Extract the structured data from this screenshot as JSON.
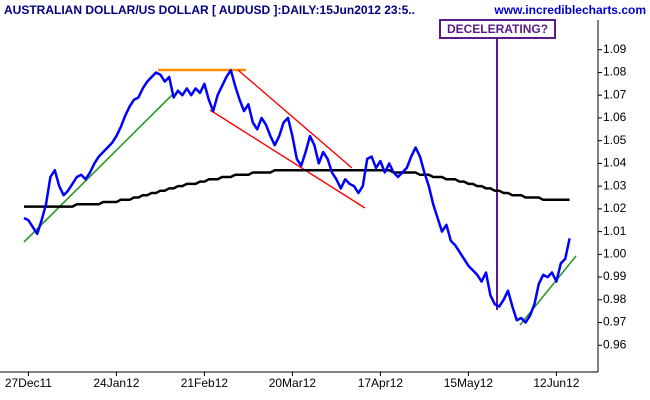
{
  "chart_data": {
    "type": "line",
    "title": "AUSTRALIAN DOLLAR/US DOLLAR [ AUDUSD ]:DAILY:15Jun2012 23:5..",
    "subtitle": "www.incrediblecharts.com",
    "annotation": "DECELERATING?",
    "categories": [
      null,
      "27Dec11",
      null,
      null,
      null,
      null,
      null,
      null,
      null,
      null,
      null,
      null,
      null,
      null,
      null,
      null,
      null,
      null,
      null,
      null,
      null,
      "24Jan12",
      null,
      null,
      null,
      null,
      null,
      null,
      null,
      null,
      null,
      null,
      null,
      null,
      null,
      null,
      null,
      null,
      null,
      null,
      null,
      "21Feb12",
      null,
      null,
      null,
      null,
      null,
      null,
      null,
      null,
      null,
      null,
      null,
      null,
      null,
      null,
      null,
      null,
      null,
      null,
      null,
      "20Mar12",
      null,
      null,
      null,
      null,
      null,
      null,
      null,
      null,
      null,
      null,
      null,
      null,
      null,
      null,
      null,
      null,
      null,
      null,
      null,
      "17Apr12",
      null,
      null,
      null,
      null,
      null,
      null,
      null,
      null,
      null,
      null,
      null,
      null,
      null,
      null,
      null,
      null,
      null,
      null,
      null,
      "15May12",
      null,
      null,
      null,
      null,
      null,
      null,
      null,
      null,
      null,
      null,
      null,
      null,
      null,
      null,
      null,
      null,
      null,
      null,
      null,
      "12Jun12",
      null,
      null,
      null
    ],
    "series": [
      {
        "color": "#0000ff",
        "values": [
          1.016,
          1.015,
          1.012,
          1.009,
          1.015,
          1.022,
          1.034,
          1.037,
          1.03,
          1.026,
          1.028,
          1.031,
          1.034,
          1.035,
          1.033,
          1.036,
          1.04,
          1.043,
          1.045,
          1.047,
          1.049,
          1.052,
          1.056,
          1.061,
          1.065,
          1.068,
          1.069,
          1.073,
          1.076,
          1.078,
          1.08,
          1.079,
          1.076,
          1.078,
          1.069,
          1.072,
          1.07,
          1.073,
          1.07,
          1.073,
          1.071,
          1.075,
          1.068,
          1.063,
          1.07,
          1.074,
          1.078,
          1.081,
          1.074,
          1.068,
          1.063,
          1.066,
          1.058,
          1.055,
          1.06,
          1.057,
          1.052,
          1.048,
          1.052,
          1.058,
          1.06,
          1.052,
          1.042,
          1.039,
          1.045,
          1.052,
          1.048,
          1.04,
          1.045,
          1.042,
          1.036,
          1.033,
          1.029,
          1.033,
          1.031,
          1.03,
          1.027,
          1.03,
          1.042,
          1.043,
          1.038,
          1.041,
          1.036,
          1.04,
          1.036,
          1.034,
          1.036,
          1.038,
          1.043,
          1.047,
          1.043,
          1.036,
          1.03,
          1.022,
          1.016,
          1.01,
          1.013,
          1.006,
          1.004,
          1.001,
          0.998,
          0.995,
          0.993,
          0.991,
          0.988,
          0.992,
          0.982,
          0.978,
          0.977,
          0.98,
          0.984,
          0.977,
          0.971,
          0.972,
          0.97,
          0.973,
          0.978,
          0.987,
          0.991,
          0.99,
          0.992,
          0.988,
          0.996,
          0.998,
          1.007
        ]
      },
      {
        "color": "#000000",
        "values": [
          1.021,
          1.021,
          1.021,
          1.021,
          1.021,
          1.021,
          1.021,
          1.021,
          1.021,
          1.021,
          1.021,
          1.021,
          1.022,
          1.022,
          1.022,
          1.022,
          1.022,
          1.022,
          1.023,
          1.023,
          1.023,
          1.023,
          1.024,
          1.024,
          1.024,
          1.025,
          1.025,
          1.026,
          1.026,
          1.027,
          1.027,
          1.028,
          1.028,
          1.029,
          1.029,
          1.03,
          1.03,
          1.031,
          1.031,
          1.031,
          1.032,
          1.032,
          1.033,
          1.033,
          1.033,
          1.034,
          1.034,
          1.034,
          1.035,
          1.035,
          1.035,
          1.035,
          1.036,
          1.036,
          1.036,
          1.036,
          1.036,
          1.037,
          1.037,
          1.037,
          1.037,
          1.037,
          1.037,
          1.037,
          1.037,
          1.037,
          1.037,
          1.037,
          1.037,
          1.037,
          1.037,
          1.037,
          1.037,
          1.037,
          1.037,
          1.037,
          1.037,
          1.037,
          1.037,
          1.037,
          1.037,
          1.037,
          1.037,
          1.037,
          1.036,
          1.036,
          1.036,
          1.036,
          1.036,
          1.036,
          1.035,
          1.035,
          1.035,
          1.034,
          1.034,
          1.034,
          1.033,
          1.033,
          1.033,
          1.032,
          1.032,
          1.031,
          1.031,
          1.03,
          1.03,
          1.029,
          1.029,
          1.028,
          1.028,
          1.027,
          1.027,
          1.026,
          1.026,
          1.026,
          1.025,
          1.025,
          1.025,
          1.025,
          1.024,
          1.024,
          1.024,
          1.024,
          1.024,
          1.024,
          1.024
        ]
      }
    ],
    "ylim": [
      0.95,
      1.1
    ],
    "yticks": [
      0.96,
      0.97,
      0.98,
      0.99,
      {
        "value": 1.0,
        "label": "1.00"
      },
      1.01,
      1.02,
      1.03,
      1.04,
      1.05,
      1.06,
      1.07,
      1.08,
      1.09
    ]
  }
}
